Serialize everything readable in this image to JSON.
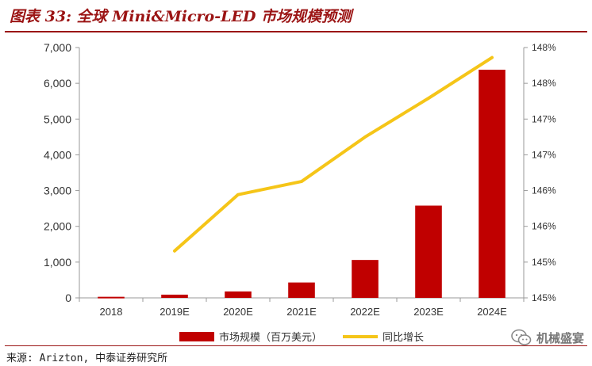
{
  "header": {
    "title": "图表 33: 全球 Mini&Micro-LED 市场规模预测"
  },
  "chart_data": {
    "type": "bar",
    "categories": [
      "2018",
      "2019E",
      "2020E",
      "2021E",
      "2022E",
      "2023E",
      "2024E"
    ],
    "series": [
      {
        "name": "市场规模（百万美元）",
        "type": "bar",
        "axis": "left",
        "values": [
          30,
          90,
          180,
          430,
          1060,
          2580,
          6380
        ]
      },
      {
        "name": "同比增长",
        "type": "line",
        "axis": "right",
        "values": [
          null,
          1.4575,
          1.4665,
          1.4686,
          1.4757,
          1.4819,
          1.4884
        ]
      }
    ],
    "left_axis": {
      "min": 0,
      "max": 7000,
      "ticks": [
        "0",
        "1,000",
        "2,000",
        "3,000",
        "4,000",
        "5,000",
        "6,000",
        "7,000"
      ]
    },
    "right_axis": {
      "min": 1.45,
      "max": 1.49,
      "ticks": [
        "145%",
        "145%",
        "146%",
        "146%",
        "147%",
        "147%",
        "148%",
        "148%"
      ]
    },
    "colors": {
      "bar": "#c00000",
      "line": "#f5c518"
    }
  },
  "source": {
    "text": "来源: Arizton, 中泰证券研究所"
  },
  "watermark": {
    "text": "机械盛宴"
  }
}
